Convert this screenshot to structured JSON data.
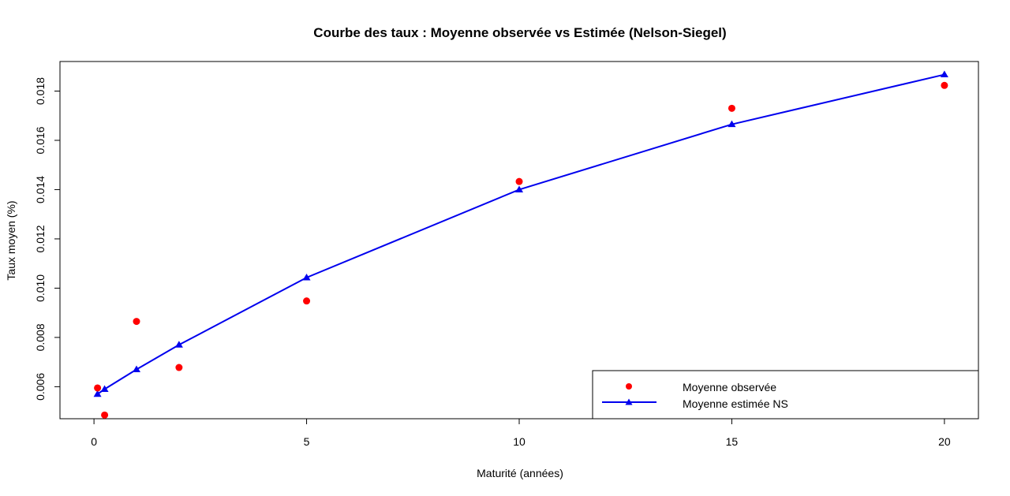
{
  "chart_data": {
    "type": "line",
    "title": "Courbe des taux : Moyenne observée vs Estimée (Nelson-Siegel)",
    "xlabel": "Maturité (années)",
    "ylabel": "Taux moyen (%)",
    "xlim": [
      -0.8,
      20.8
    ],
    "ylim": [
      0.0047,
      0.0192
    ],
    "x_ticks": [
      0,
      5,
      10,
      15,
      20
    ],
    "x_tick_labels": [
      "0",
      "5",
      "10",
      "15",
      "20"
    ],
    "y_ticks": [
      0.006,
      0.008,
      0.01,
      0.012,
      0.014,
      0.016,
      0.018
    ],
    "y_tick_labels": [
      "0.006",
      "0.008",
      "0.010",
      "0.012",
      "0.014",
      "0.016",
      "0.018"
    ],
    "grid": false,
    "legend_position": "bottom-right",
    "series": [
      {
        "name": "Moyenne observée",
        "kind": "points",
        "marker": "circle",
        "color": "#ff0000",
        "x": [
          0.083,
          0.25,
          1,
          2,
          5,
          10,
          15,
          20
        ],
        "y": [
          0.00595,
          0.00485,
          0.00865,
          0.00678,
          0.00948,
          0.01433,
          0.0173,
          0.01823
        ]
      },
      {
        "name": "Moyenne estimée NS",
        "kind": "line+points",
        "marker": "triangle",
        "color": "#0000ee",
        "x": [
          0.083,
          0.25,
          1,
          2,
          5,
          10,
          15,
          20
        ],
        "y": [
          0.0057,
          0.0059,
          0.0067,
          0.0077,
          0.01043,
          0.014,
          0.01665,
          0.01867
        ]
      }
    ]
  }
}
